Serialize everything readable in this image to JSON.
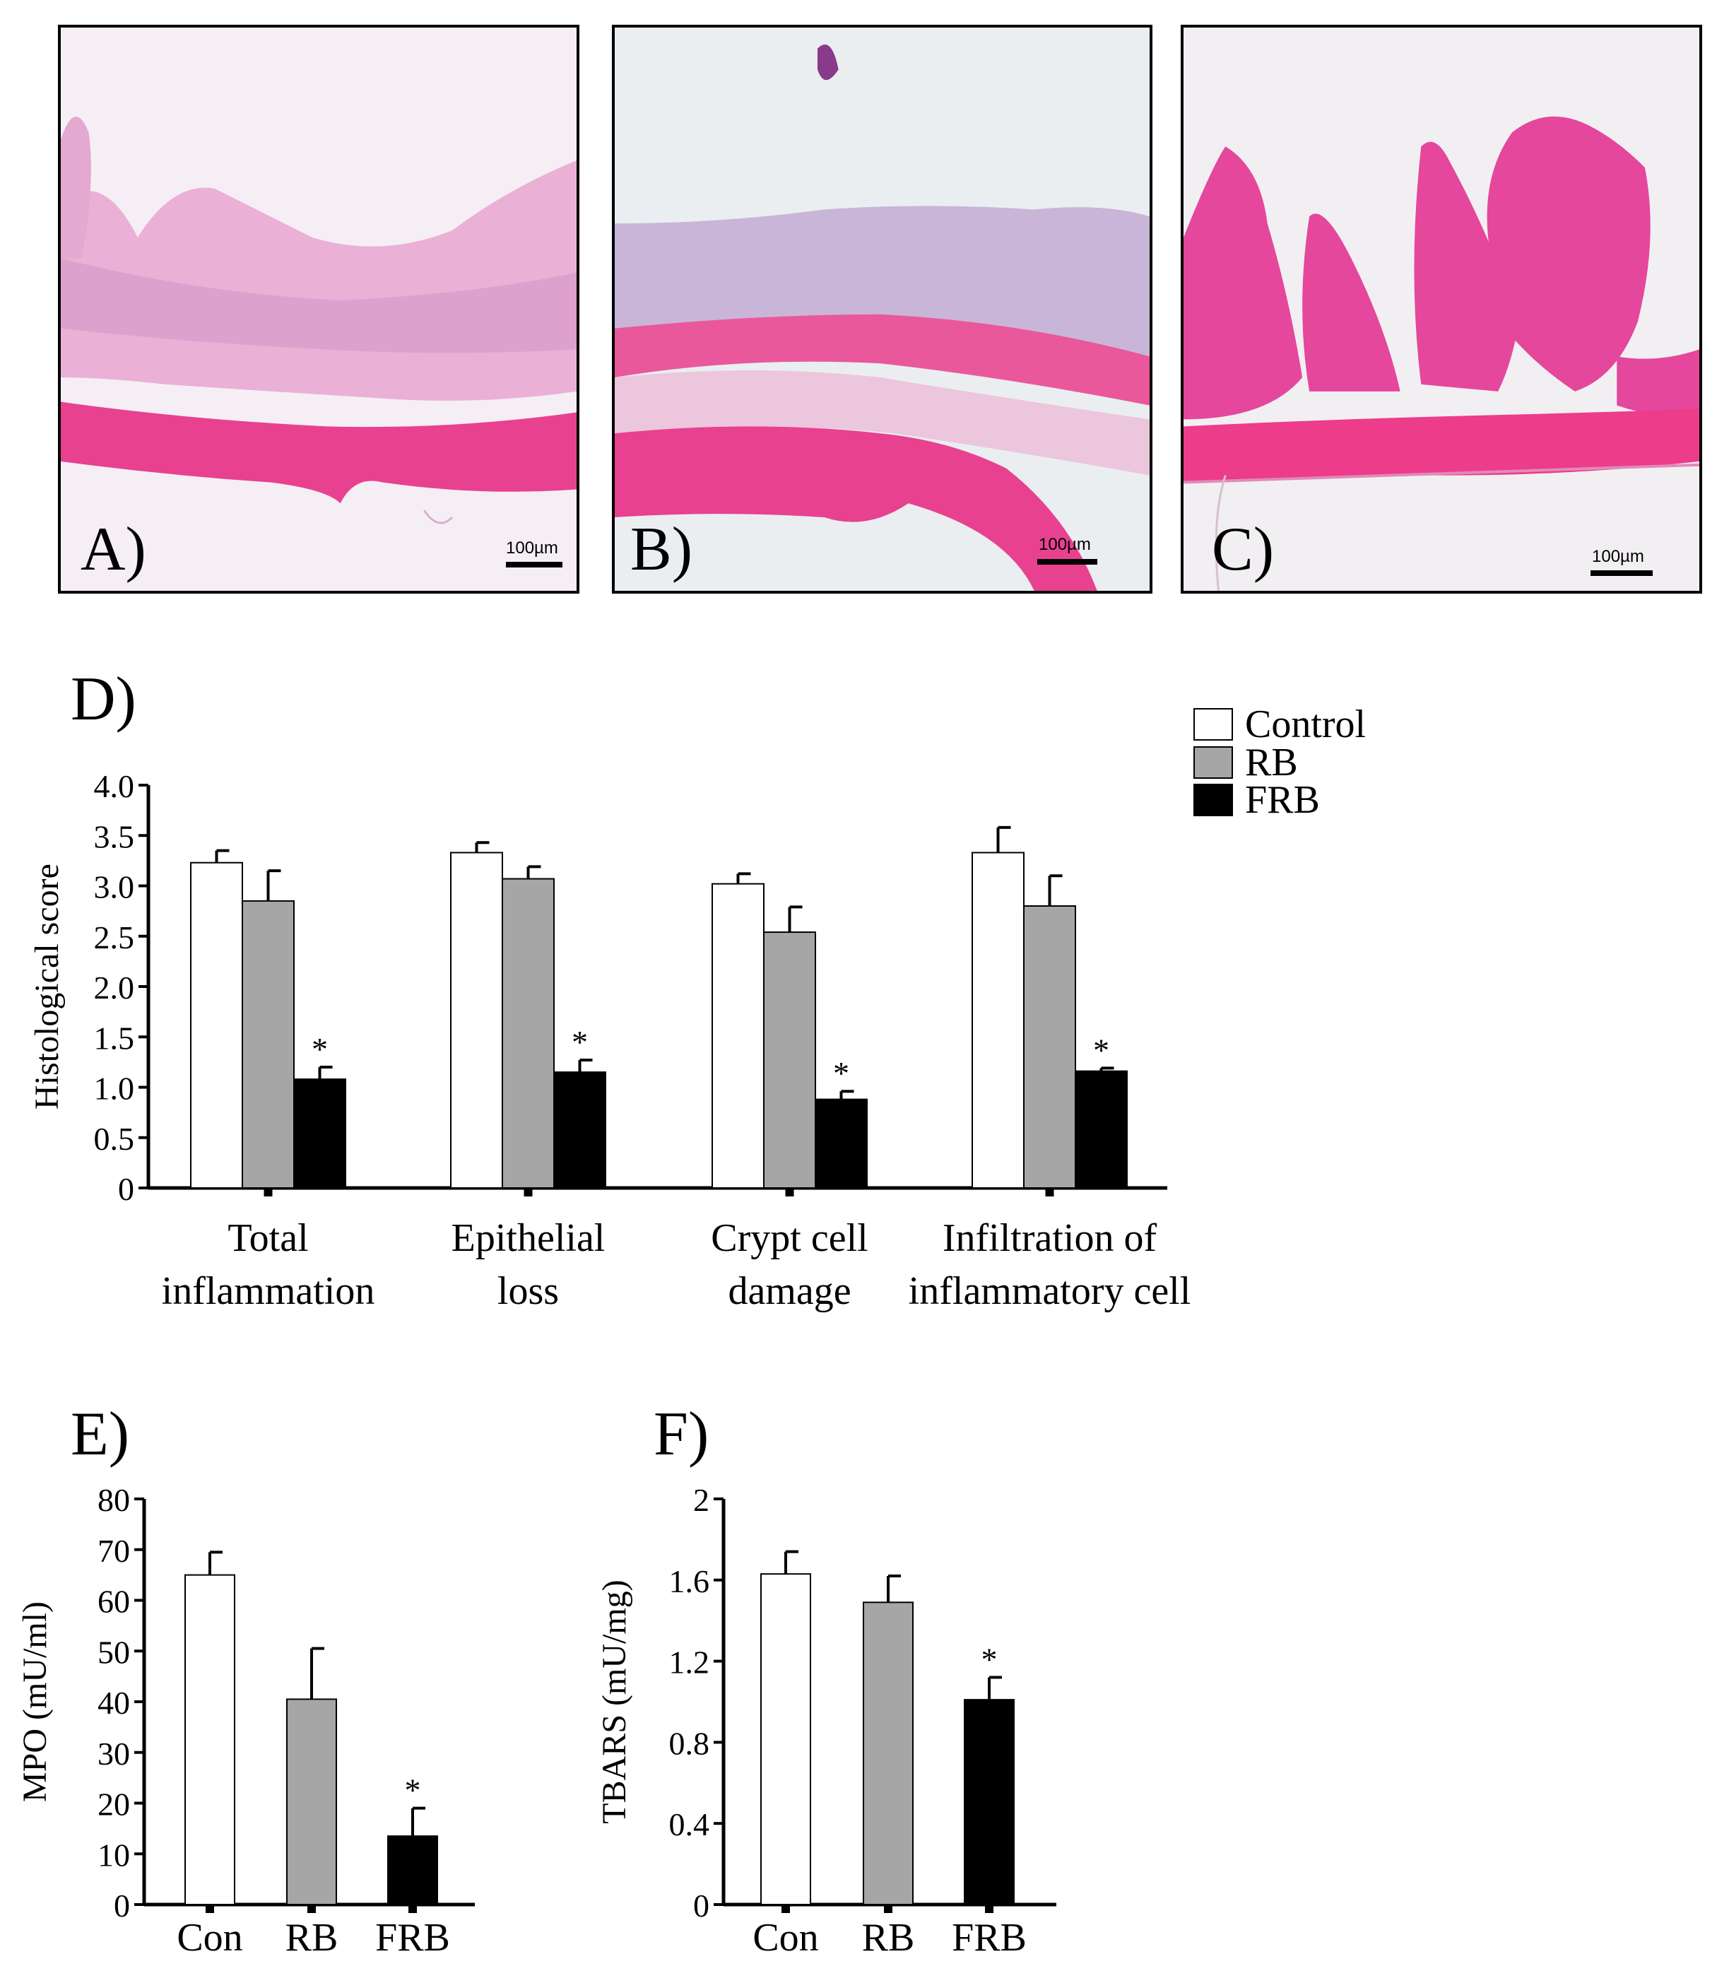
{
  "panels": [
    {
      "label": "A)",
      "scale": "100µm"
    },
    {
      "label": "B)",
      "scale": "100µm"
    },
    {
      "label": "C)",
      "scale": "100µm"
    }
  ],
  "colors": {
    "control": "#ffffff",
    "rb": "#a6a6a6",
    "frb": "#000000",
    "tissue_pink": "#e83a8c",
    "tissue_light": "#f2a7cf",
    "tissue_purple": "#b08ac8",
    "background_slide": "#f4eef4"
  },
  "chart_data": [
    {
      "panel_label": "D)",
      "type": "bar",
      "categories": [
        [
          "Total",
          "inflammation"
        ],
        [
          "Epithelial",
          "loss"
        ],
        [
          "Crypt cell",
          "damage"
        ],
        [
          "Infiltration of",
          "inflammatory cell"
        ]
      ],
      "series": [
        {
          "name": "Control",
          "values": [
            3.23,
            3.33,
            3.02,
            3.33
          ],
          "errors": [
            0.12,
            0.1,
            0.1,
            0.25
          ]
        },
        {
          "name": "RB",
          "values": [
            2.85,
            3.07,
            2.54,
            2.8
          ],
          "errors": [
            0.3,
            0.12,
            0.25,
            0.3
          ]
        },
        {
          "name": "FRB",
          "values": [
            1.08,
            1.15,
            0.88,
            1.16
          ],
          "errors": [
            0.12,
            0.12,
            0.08,
            0.03
          ]
        }
      ],
      "significance": [
        "*",
        "*",
        "*",
        "*"
      ],
      "ylabel": "Histological score",
      "ylim": [
        0,
        4.0
      ],
      "yticks": [
        "0",
        "0.5",
        "1.0",
        "1.5",
        "2.0",
        "2.5",
        "3.0",
        "3.5",
        "4.0"
      ],
      "legend": [
        "Control",
        "RB",
        "FRB"
      ],
      "legend_position": "top-right"
    },
    {
      "panel_label": "E)",
      "type": "bar",
      "categories": [
        "Con",
        "RB",
        "FRB"
      ],
      "values": [
        65,
        40.5,
        13.5
      ],
      "errors": [
        4.5,
        10,
        5.5
      ],
      "significance": [
        "",
        "",
        "*"
      ],
      "ylabel": "MPO (mU/ml)",
      "ylim": [
        0,
        80
      ],
      "yticks": [
        "0",
        "10",
        "20",
        "30",
        "40",
        "50",
        "60",
        "70",
        "80"
      ]
    },
    {
      "panel_label": "F)",
      "type": "bar",
      "categories": [
        "Con",
        "RB",
        "FRB"
      ],
      "values": [
        1.63,
        1.49,
        1.01
      ],
      "errors": [
        0.11,
        0.13,
        0.11
      ],
      "significance": [
        "",
        "",
        "*"
      ],
      "ylabel": "TBARS (mU/mg)",
      "ylim": [
        0,
        2
      ],
      "yticks": [
        "0",
        "0.4",
        "0.8",
        "1.2",
        "1.6",
        "2"
      ]
    }
  ]
}
